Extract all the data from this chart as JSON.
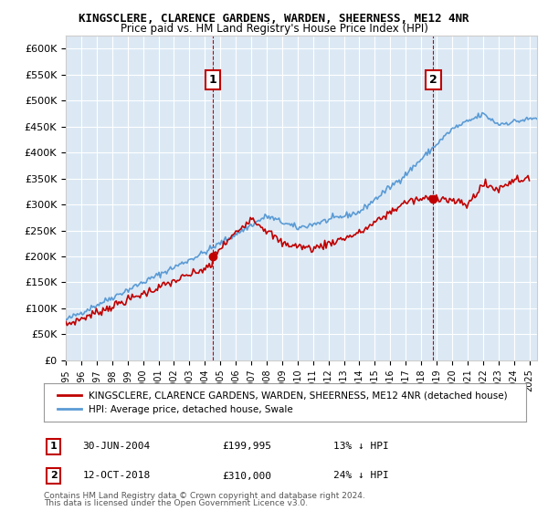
{
  "title": "KINGSCLERE, CLARENCE GARDENS, WARDEN, SHEERNESS, ME12 4NR",
  "subtitle": "Price paid vs. HM Land Registry's House Price Index (HPI)",
  "ylim": [
    0,
    625000
  ],
  "yticks": [
    0,
    50000,
    100000,
    150000,
    200000,
    250000,
    300000,
    350000,
    400000,
    450000,
    500000,
    550000,
    600000
  ],
  "plot_bg_color": "#dce9f5",
  "hpi_color": "#5b9bd5",
  "price_color": "#c00000",
  "marker1_date": 2004.5,
  "marker1_price": 199995,
  "marker1_label": "1",
  "marker2_date": 2018.79,
  "marker2_price": 310000,
  "marker2_label": "2",
  "legend_line1": "KINGSCLERE, CLARENCE GARDENS, WARDEN, SHEERNESS, ME12 4NR (detached house)",
  "legend_line2": "HPI: Average price, detached house, Swale",
  "footer1": "Contains HM Land Registry data © Crown copyright and database right 2024.",
  "footer2": "This data is licensed under the Open Government Licence v3.0.",
  "xmin": 1995,
  "xmax": 2025.5
}
